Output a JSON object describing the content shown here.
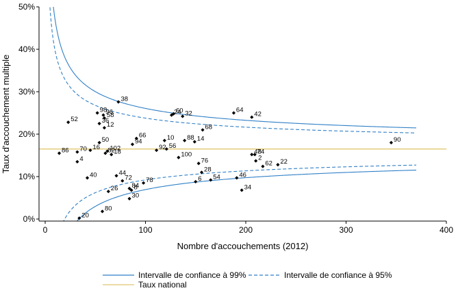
{
  "chart_data": {
    "type": "scatter",
    "title": "",
    "xlabel": "Nombre d'accouchements (2012)",
    "ylabel": "Taux d'accouchement multiple",
    "xlim": [
      0,
      400
    ],
    "ylim": [
      0,
      50
    ],
    "x_ticks": [
      0,
      100,
      200,
      300,
      400
    ],
    "y_ticks": [
      {
        "value": 0,
        "label": "0%"
      },
      {
        "value": 10,
        "label": "10%"
      },
      {
        "value": 20,
        "label": "20%"
      },
      {
        "value": 30,
        "label": "30%"
      },
      {
        "value": 40,
        "label": "40%"
      },
      {
        "value": 50,
        "label": "50%"
      }
    ],
    "grid": false,
    "legend_position": "bottom",
    "national_rate": 16.5,
    "limit_n_range": [
      2,
      370
    ],
    "z99": 2.576,
    "z95": 1.96,
    "colors": {
      "limit_line": "#2e7fc6",
      "national_line": "#e0c870",
      "points": "#000000",
      "axis": "#000000"
    },
    "legend": [
      {
        "label": "Intervalle de confiance à 99%",
        "style": "solid",
        "color": "#2e7fc6"
      },
      {
        "label": "Intervalle de confiance à 95%",
        "style": "dashed",
        "color": "#2e7fc6"
      },
      {
        "label": "Taux national",
        "style": "solid",
        "color": "#e0c870"
      }
    ],
    "points": [
      {
        "label": "2",
        "x": 210,
        "y": 13.7
      },
      {
        "label": "4",
        "x": 32,
        "y": 13.5
      },
      {
        "label": "6",
        "x": 150,
        "y": 8.8
      },
      {
        "label": "8",
        "x": 86,
        "y": 6.8
      },
      {
        "label": "10",
        "x": 119,
        "y": 18.5
      },
      {
        "label": "12",
        "x": 59,
        "y": 21.5
      },
      {
        "label": "14",
        "x": 149,
        "y": 18.2
      },
      {
        "label": "16",
        "x": 45,
        "y": 16.2
      },
      {
        "label": "18",
        "x": 66,
        "y": 15.2
      },
      {
        "label": "20",
        "x": 34,
        "y": 0.2
      },
      {
        "label": "22",
        "x": 232,
        "y": 12.8
      },
      {
        "label": "24",
        "x": 126,
        "y": 24.5
      },
      {
        "label": "26",
        "x": 63,
        "y": 6.5
      },
      {
        "label": "28",
        "x": 156,
        "y": 11
      },
      {
        "label": "30",
        "x": 84,
        "y": 4.8
      },
      {
        "label": "32",
        "x": 137,
        "y": 24.2
      },
      {
        "label": "34",
        "x": 196,
        "y": 6.8
      },
      {
        "label": "36",
        "x": 54,
        "y": 22.5
      },
      {
        "label": "38",
        "x": 73,
        "y": 27.6
      },
      {
        "label": "40",
        "x": 42,
        "y": 9.7
      },
      {
        "label": "42",
        "x": 206,
        "y": 24
      },
      {
        "label": "44",
        "x": 71,
        "y": 10.2
      },
      {
        "label": "46",
        "x": 191,
        "y": 9.7
      },
      {
        "label": "48",
        "x": 206,
        "y": 15.2
      },
      {
        "label": "50",
        "x": 54,
        "y": 18
      },
      {
        "label": "52",
        "x": 23,
        "y": 22.8
      },
      {
        "label": "54",
        "x": 165,
        "y": 9.2
      },
      {
        "label": "56",
        "x": 121,
        "y": 16.5
      },
      {
        "label": "58",
        "x": 59,
        "y": 23.8
      },
      {
        "label": "60",
        "x": 128,
        "y": 24.8
      },
      {
        "label": "62",
        "x": 217,
        "y": 12.4
      },
      {
        "label": "64",
        "x": 188,
        "y": 25
      },
      {
        "label": "66",
        "x": 91,
        "y": 19
      },
      {
        "label": "68",
        "x": 157,
        "y": 21
      },
      {
        "label": "70",
        "x": 32,
        "y": 15.8
      },
      {
        "label": "72",
        "x": 77,
        "y": 9
      },
      {
        "label": "74",
        "x": 209,
        "y": 15.2
      },
      {
        "label": "76",
        "x": 153,
        "y": 13.1
      },
      {
        "label": "78",
        "x": 98,
        "y": 8.5
      },
      {
        "label": "80",
        "x": 57,
        "y": 1.8
      },
      {
        "label": "82",
        "x": 60,
        "y": 15.5
      },
      {
        "label": "84",
        "x": 84,
        "y": 7.2
      },
      {
        "label": "86",
        "x": 14,
        "y": 15.5
      },
      {
        "label": "88",
        "x": 139,
        "y": 18.5
      },
      {
        "label": "90",
        "x": 345,
        "y": 18
      },
      {
        "label": "92",
        "x": 111,
        "y": 16.2
      },
      {
        "label": "94",
        "x": 87,
        "y": 17.6
      },
      {
        "label": "96",
        "x": 58,
        "y": 24.5
      },
      {
        "label": "98",
        "x": 52,
        "y": 25
      },
      {
        "label": "100",
        "x": 133,
        "y": 14.5
      },
      {
        "label": "102",
        "x": 62,
        "y": 16
      }
    ]
  }
}
